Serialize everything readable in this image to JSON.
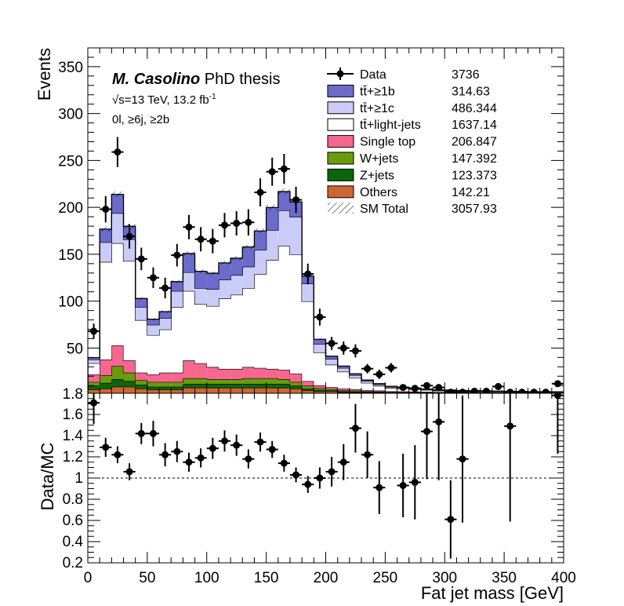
{
  "info": {
    "author": "M. Casolino",
    "thesis": " PhD thesis",
    "sqrt_s": "s=13 TeV, 13.2 fb",
    "lumi_exp": "-1",
    "selection": "0l, ≥6j, ≥2b"
  },
  "chart_data": [
    {
      "type": "bar",
      "panel": "main",
      "stacked": true,
      "xlabel": "",
      "ylabel": "Events",
      "xlim": [
        0,
        400
      ],
      "ylim": [
        1.8,
        370
      ],
      "bin_width": 10,
      "y_ticks": [
        50,
        100,
        150,
        200,
        250,
        300,
        350
      ],
      "y_tick_labels": [
        "50",
        "100",
        "150",
        "200",
        "250",
        "300",
        "350"
      ],
      "bottom_label": "1.8",
      "x": [
        5,
        15,
        25,
        35,
        45,
        55,
        65,
        75,
        85,
        95,
        105,
        115,
        125,
        135,
        145,
        155,
        165,
        175,
        185,
        195,
        205,
        215,
        225,
        235,
        245,
        255,
        265,
        275,
        285,
        295,
        305,
        315,
        325,
        335,
        345,
        355,
        365,
        375,
        385,
        395
      ],
      "legend": [
        {
          "label": "Data",
          "value": "3736",
          "style": "data",
          "color": "#000000"
        },
        {
          "label": "tt̄+≥1b",
          "value": "314.63",
          "style": "fill",
          "color": "#6b6bcc"
        },
        {
          "label": "tt̄+≥1c",
          "value": "486.344",
          "style": "fill",
          "color": "#cbcbf7"
        },
        {
          "label": "tt̄+light-jets",
          "value": "1637.14",
          "style": "fill",
          "color": "#ffffff"
        },
        {
          "label": "Single top",
          "value": "206.847",
          "style": "fill",
          "color": "#f7668e"
        },
        {
          "label": "W+jets",
          "value": "147.392",
          "style": "fill",
          "color": "#6b9b0b"
        },
        {
          "label": "Z+jets",
          "value": "123.373",
          "style": "fill",
          "color": "#0b650b"
        },
        {
          "label": "Others",
          "value": "142.21",
          "style": "fill",
          "color": "#cc6633"
        },
        {
          "label": "SM Total",
          "value": "3057.93",
          "style": "hatch",
          "color": "#000000"
        }
      ],
      "series": [
        {
          "name": "Others",
          "color": "#cc6633",
          "values": [
            4,
            5,
            7,
            7,
            5,
            4,
            4,
            4,
            6,
            6,
            6,
            6,
            6,
            6,
            6,
            6,
            6,
            5,
            3,
            2,
            2,
            1,
            1,
            1,
            1,
            0.6,
            0.5,
            0.5,
            0.5,
            0.4,
            0.4,
            0.3,
            0.3,
            0.3,
            0.3,
            0.2,
            0.2,
            0.2,
            0.2,
            0.2
          ]
        },
        {
          "name": "Z+jets",
          "color": "#0b650b",
          "values": [
            4,
            6,
            8,
            6,
            4,
            3,
            3,
            3,
            4,
            4,
            4,
            4,
            4,
            4,
            4,
            4,
            4,
            3,
            2,
            1.5,
            1,
            1,
            0.8,
            0.5,
            0.4,
            0.3,
            0.3,
            0.3,
            0.2,
            0.2,
            0.2,
            0.2,
            0.2,
            0.2,
            0.2,
            0.1,
            0.1,
            0.1,
            0.1,
            0.1
          ]
        },
        {
          "name": "W+jets",
          "color": "#6b9b0b",
          "values": [
            4,
            8,
            14,
            9,
            5,
            5,
            5,
            5,
            6,
            6,
            5,
            5,
            5,
            6,
            6,
            6,
            5,
            4,
            3,
            2,
            1.5,
            1,
            1,
            0.6,
            0.5,
            0.4,
            0.4,
            0.3,
            0.3,
            0.2,
            0.2,
            0.2,
            0.2,
            0.2,
            0.2,
            0.2,
            0.1,
            0.1,
            0.1,
            0.1
          ]
        },
        {
          "name": "Single top",
          "color": "#f7668e",
          "values": [
            8,
            17,
            22,
            13,
            8,
            8,
            10,
            10,
            19,
            16,
            13,
            11,
            11,
            12,
            11,
            10,
            10,
            9,
            5,
            3,
            2,
            2,
            1.5,
            1,
            1,
            0.8,
            0.8,
            0.7,
            0.6,
            0.5,
            0.5,
            0.4,
            0.4,
            0.3,
            0.3,
            0.3,
            0.3,
            0.2,
            0.2,
            0.2
          ]
        },
        {
          "name": "tt̄+light-jets",
          "color": "#ffffff",
          "values": [
            12,
            104,
            109,
            106,
            56,
            42,
            46,
            70,
            74,
            63,
            65,
            75,
            79,
            84,
            100,
            116,
            132,
            127,
            85,
            35,
            24,
            18,
            12,
            8,
            5,
            3.5,
            3,
            2.5,
            2,
            1.4,
            1.3,
            1.2,
            1,
            1,
            0.8,
            0.8,
            0.8,
            0.6,
            0.6,
            0.6
          ]
        },
        {
          "name": "tt̄+≥1c",
          "color": "#cbcbf7",
          "values": [
            4,
            21,
            32,
            23,
            14,
            11,
            12,
            17,
            20,
            17,
            18,
            20,
            21,
            23,
            26,
            32,
            38,
            40,
            19,
            9,
            6,
            4,
            3,
            2,
            1.5,
            1.2,
            1,
            0.8,
            0.6,
            0.6,
            0.5,
            0.4,
            0.4,
            0.3,
            0.3,
            0.3,
            0.3,
            0.3,
            0.3,
            0.2
          ]
        },
        {
          "name": "tt̄+≥1b",
          "color": "#6b6bcc",
          "values": [
            2,
            14,
            20,
            14,
            9,
            6,
            7,
            10,
            20,
            18,
            17,
            18,
            18,
            21,
            20,
            24,
            20,
            16,
            8,
            5,
            3,
            2,
            1.5,
            1,
            0.8,
            0.6,
            0.5,
            0.4,
            0.3,
            0.3,
            0.3,
            0.2,
            0.2,
            0.2,
            0.2,
            0.2,
            0.2,
            0.2,
            0.2,
            0.2
          ]
        }
      ],
      "data": {
        "name": "Data",
        "values": [
          68,
          198,
          259,
          169,
          145,
          125,
          114,
          149,
          179,
          166,
          164,
          181,
          183,
          184,
          216,
          238,
          241,
          208,
          129,
          83,
          55,
          50,
          47,
          28,
          22,
          29,
          8,
          7,
          10,
          8,
          3,
          3,
          4,
          4,
          9,
          3,
          3,
          3,
          3,
          12
        ],
        "errors": [
          8,
          14,
          16,
          13,
          12,
          11,
          11,
          12,
          13,
          13,
          13,
          13,
          13,
          14,
          15,
          15,
          16,
          14,
          11,
          9,
          7,
          7,
          7,
          5,
          5,
          5,
          3,
          3,
          3,
          3,
          2,
          2,
          2,
          2,
          3,
          2,
          2,
          2,
          2,
          3.5
        ]
      }
    },
    {
      "type": "scatter",
      "panel": "ratio",
      "xlabel": "Fat jet mass [GeV]",
      "ylabel": "Data/MC",
      "xlim": [
        0,
        400
      ],
      "ylim": [
        0.2,
        1.8
      ],
      "x_ticks": [
        0,
        50,
        100,
        150,
        200,
        250,
        300,
        350,
        400
      ],
      "x_tick_labels": [
        "0",
        "50",
        "100",
        "150",
        "200",
        "250",
        "300",
        "350",
        "400"
      ],
      "y_ticks": [
        0.2,
        0.4,
        0.6,
        0.8,
        1,
        1.2,
        1.4,
        1.6
      ],
      "y_tick_labels": [
        "0.2",
        "0.4",
        "0.6",
        "0.8",
        "1",
        "1.2",
        "1.4",
        "1.6"
      ],
      "reference_line": 1,
      "x": [
        5,
        15,
        25,
        35,
        45,
        55,
        65,
        75,
        85,
        95,
        105,
        115,
        125,
        135,
        145,
        155,
        165,
        175,
        185,
        195,
        205,
        215,
        225,
        235,
        245,
        255,
        265,
        275,
        285,
        295,
        305,
        315,
        325,
        335,
        345,
        355,
        365,
        375,
        385,
        395
      ],
      "values": [
        1.71,
        1.29,
        1.22,
        1.06,
        1.42,
        1.42,
        1.22,
        1.25,
        1.15,
        1.19,
        1.28,
        1.35,
        1.31,
        1.18,
        1.34,
        1.27,
        1.14,
        1.03,
        0.94,
        1.0,
        1.06,
        1.15,
        1.47,
        1.22,
        0.91,
        null,
        0.93,
        0.96,
        1.44,
        1.53,
        0.61,
        1.18,
        null,
        null,
        null,
        1.49,
        null,
        null,
        null,
        1.78
      ],
      "errors": [
        0.2,
        0.09,
        0.08,
        0.08,
        0.1,
        0.12,
        0.11,
        0.1,
        0.09,
        0.09,
        0.1,
        0.1,
        0.1,
        0.09,
        0.09,
        0.08,
        0.08,
        0.07,
        0.08,
        0.1,
        0.14,
        0.17,
        0.23,
        0.22,
        0.25,
        null,
        0.3,
        0.35,
        0.45,
        0.55,
        0.37,
        0.6,
        null,
        null,
        null,
        0.9,
        null,
        null,
        null,
        0.55
      ]
    }
  ]
}
